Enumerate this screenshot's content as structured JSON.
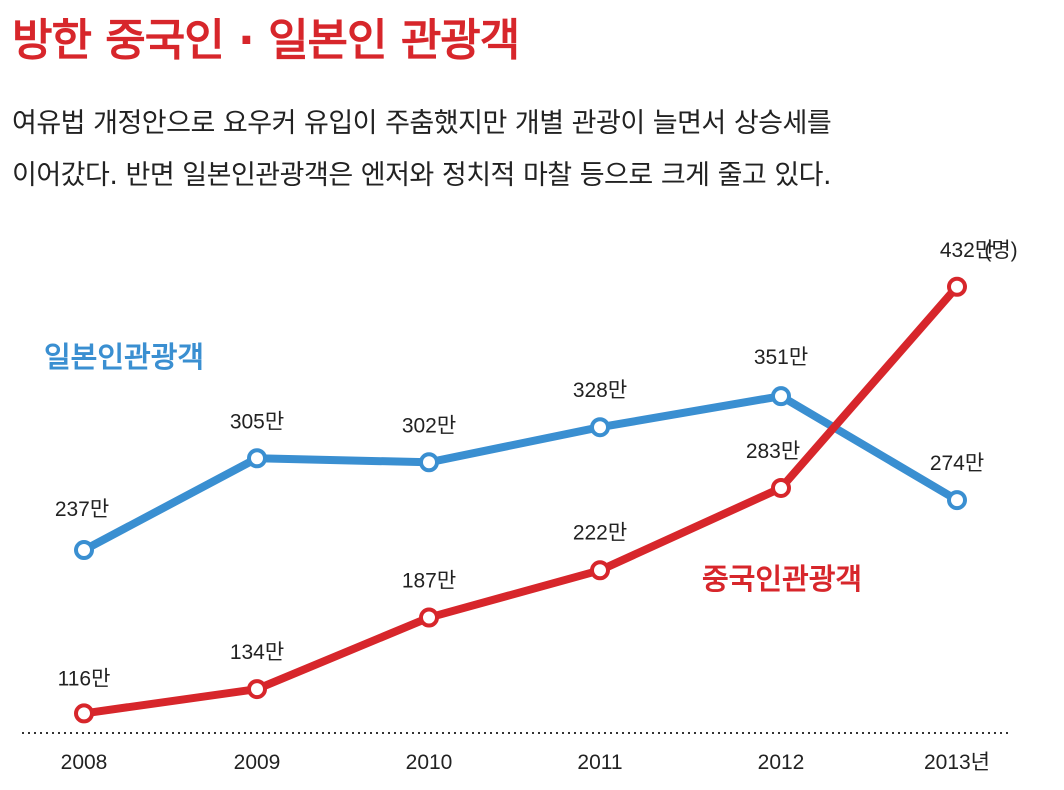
{
  "header": {
    "title": "방한 중국인 · 일본인 관광객",
    "subtitle_line1": "여유법 개정안으로 요우커 유입이 주춤했지만 개별 관광이 늘면서 상승세를",
    "subtitle_line2": "이어갔다. 반면 일본인관광객은 엔저와 정치적 마찰 등으로 크게 줄고 있다."
  },
  "chart_data": {
    "type": "line",
    "categories": [
      "2008",
      "2009",
      "2010",
      "2011",
      "2012",
      "2013년"
    ],
    "x": [
      2008,
      2009,
      2010,
      2011,
      2012,
      2013
    ],
    "unit_label": "(명)",
    "ylim": [
      100,
      450
    ],
    "grid": false,
    "series": [
      {
        "name": "일본인관광객",
        "color": "#3a8fd1",
        "values": [
          237,
          305,
          302,
          328,
          351,
          274
        ],
        "labels": [
          "237만",
          "305만",
          "302만",
          "328만",
          "351만",
          "274만"
        ]
      },
      {
        "name": "중국인관광객",
        "color": "#d7262b",
        "values": [
          116,
          134,
          187,
          222,
          283,
          432
        ],
        "labels": [
          "116만",
          "134만",
          "187만",
          "222만",
          "283만",
          "432만"
        ]
      }
    ]
  }
}
